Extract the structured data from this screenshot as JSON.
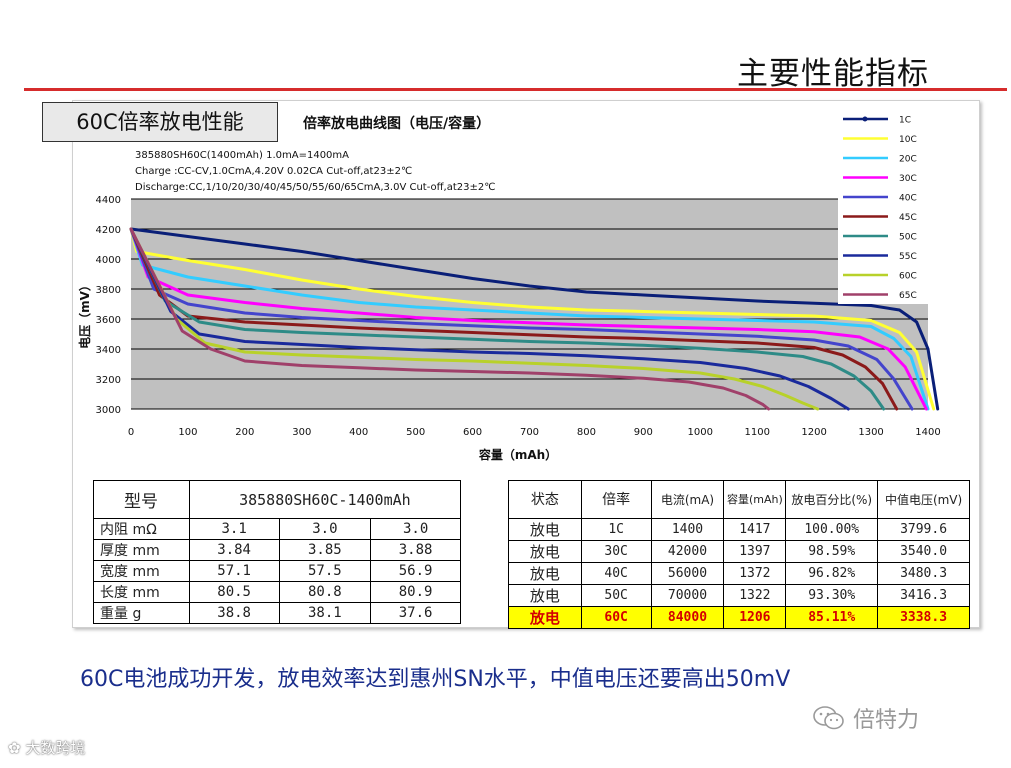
{
  "slide": {
    "title": "主要性能指标",
    "badge": "60C倍率放电性能",
    "caption": "60C电池成功开发，放电效率达到惠州SN水平，中值电压还要高出50mV",
    "wechat_name": "倍特力",
    "brand": "大数跨境",
    "accent": "#d62c2c"
  },
  "chart_data": {
    "type": "line",
    "title": "倍率放电曲线图（电压/容量）",
    "notes": [
      "385880SH60C(1400mAh) 1.0mA=1400mA",
      "Charge   :CC-CV,1.0CmA,4.20V  0.02CA Cut-off,at23±2℃",
      "Discharge:CC,1/10/20/30/40/45/50/55/60/65CmA,3.0V  Cut-off,at23±2℃"
    ],
    "xlabel": "容量（mAh）",
    "ylabel": "电压（mV）",
    "xlim": [
      0,
      1400
    ],
    "ylim": [
      3000,
      4400
    ],
    "xticks": [
      0,
      100,
      200,
      300,
      400,
      500,
      600,
      700,
      800,
      900,
      1000,
      1100,
      1200,
      1300,
      1400
    ],
    "yticks": [
      3000,
      3200,
      3400,
      3600,
      3800,
      4000,
      4200,
      4400
    ],
    "grid": true,
    "legend_position": "top-right",
    "series": [
      {
        "name": "1C",
        "color": "#0a1f78",
        "x": [
          0,
          100,
          200,
          300,
          400,
          500,
          600,
          700,
          800,
          900,
          1000,
          1100,
          1200,
          1300,
          1350,
          1380,
          1400,
          1417
        ],
        "y": [
          4200,
          4150,
          4100,
          4050,
          3990,
          3930,
          3870,
          3820,
          3780,
          3760,
          3740,
          3720,
          3705,
          3690,
          3660,
          3580,
          3400,
          3000
        ]
      },
      {
        "name": "10C",
        "color": "#ffff33",
        "x": [
          0,
          10,
          100,
          200,
          300,
          400,
          500,
          600,
          700,
          800,
          900,
          1000,
          1100,
          1200,
          1300,
          1350,
          1380,
          1410
        ],
        "y": [
          4200,
          4050,
          3990,
          3930,
          3860,
          3800,
          3750,
          3710,
          3680,
          3660,
          3650,
          3640,
          3630,
          3620,
          3590,
          3510,
          3380,
          3000
        ]
      },
      {
        "name": "20C",
        "color": "#33ccff",
        "x": [
          0,
          20,
          100,
          200,
          300,
          400,
          500,
          600,
          700,
          800,
          900,
          1000,
          1100,
          1200,
          1300,
          1340,
          1370,
          1400
        ],
        "y": [
          4200,
          3960,
          3880,
          3820,
          3760,
          3710,
          3680,
          3660,
          3640,
          3620,
          3610,
          3600,
          3590,
          3580,
          3550,
          3470,
          3350,
          3000
        ]
      },
      {
        "name": "30C",
        "color": "#ff00ff",
        "x": [
          0,
          30,
          100,
          200,
          300,
          400,
          500,
          600,
          700,
          800,
          900,
          1000,
          1100,
          1200,
          1280,
          1330,
          1360,
          1397
        ],
        "y": [
          4200,
          3880,
          3760,
          3710,
          3670,
          3640,
          3610,
          3590,
          3575,
          3560,
          3550,
          3540,
          3530,
          3515,
          3480,
          3400,
          3280,
          3000
        ]
      },
      {
        "name": "40C",
        "color": "#4444cc",
        "x": [
          0,
          40,
          100,
          200,
          300,
          400,
          500,
          600,
          700,
          800,
          900,
          1000,
          1100,
          1200,
          1260,
          1310,
          1340,
          1372
        ],
        "y": [
          4200,
          3800,
          3700,
          3640,
          3610,
          3590,
          3570,
          3555,
          3540,
          3530,
          3515,
          3500,
          3485,
          3460,
          3420,
          3330,
          3200,
          3000
        ]
      },
      {
        "name": "45C",
        "color": "#8b1a1a",
        "x": [
          0,
          50,
          100,
          200,
          300,
          400,
          500,
          600,
          700,
          800,
          900,
          1000,
          1100,
          1200,
          1250,
          1290,
          1320,
          1345
        ],
        "y": [
          4200,
          3760,
          3620,
          3580,
          3560,
          3540,
          3525,
          3510,
          3495,
          3480,
          3470,
          3455,
          3440,
          3410,
          3360,
          3280,
          3170,
          3000
        ]
      },
      {
        "name": "50C",
        "color": "#2e8b87",
        "x": [
          0,
          60,
          120,
          200,
          300,
          400,
          500,
          600,
          700,
          800,
          900,
          1000,
          1100,
          1180,
          1230,
          1270,
          1300,
          1322
        ],
        "y": [
          4200,
          3720,
          3580,
          3530,
          3510,
          3495,
          3480,
          3465,
          3450,
          3440,
          3425,
          3405,
          3380,
          3350,
          3300,
          3220,
          3120,
          3000
        ]
      },
      {
        "name": "55C",
        "color": "#1a2a9c",
        "x": [
          0,
          70,
          120,
          200,
          300,
          400,
          500,
          600,
          700,
          800,
          900,
          1000,
          1080,
          1140,
          1190,
          1230,
          1260
        ],
        "y": [
          4200,
          3650,
          3500,
          3450,
          3430,
          3410,
          3395,
          3380,
          3370,
          3355,
          3335,
          3310,
          3270,
          3220,
          3150,
          3070,
          3000
        ]
      },
      {
        "name": "60C",
        "color": "#b8d12a",
        "x": [
          0,
          80,
          130,
          200,
          300,
          400,
          500,
          600,
          700,
          800,
          900,
          1000,
          1060,
          1110,
          1150,
          1180,
          1206
        ],
        "y": [
          4200,
          3600,
          3440,
          3380,
          3360,
          3345,
          3330,
          3320,
          3305,
          3290,
          3270,
          3240,
          3200,
          3150,
          3090,
          3040,
          3000
        ]
      },
      {
        "name": "65C",
        "color": "#a0406a",
        "x": [
          0,
          90,
          140,
          200,
          300,
          400,
          500,
          600,
          700,
          800,
          900,
          980,
          1040,
          1080,
          1110,
          1120
        ],
        "y": [
          4200,
          3520,
          3400,
          3320,
          3290,
          3275,
          3260,
          3250,
          3240,
          3225,
          3205,
          3180,
          3140,
          3090,
          3030,
          3000
        ]
      }
    ]
  },
  "spec_table": {
    "model_label": "型号",
    "model_value": "385880SH60C-1400mAh",
    "rows": [
      {
        "label": "内阻 mΩ",
        "values": [
          "3.1",
          "3.0",
          "3.0"
        ]
      },
      {
        "label": "厚度 mm",
        "values": [
          "3.84",
          "3.85",
          "3.88"
        ]
      },
      {
        "label": "宽度 mm",
        "values": [
          "57.1",
          "57.5",
          "56.9"
        ]
      },
      {
        "label": "长度 mm",
        "values": [
          "80.5",
          "80.8",
          "80.9"
        ]
      },
      {
        "label": "重量 g",
        "values": [
          "38.8",
          "38.1",
          "37.6"
        ]
      }
    ]
  },
  "perf_table": {
    "headers": [
      "状态",
      "倍率",
      "电流(mA)",
      "容量(mAh)",
      "放电百分比(%)",
      "中值电压(mV)"
    ],
    "rows": [
      [
        "放电",
        "1C",
        "1400",
        "1417",
        "100.00%",
        "3799.6"
      ],
      [
        "放电",
        "30C",
        "42000",
        "1397",
        "98.59%",
        "3540.0"
      ],
      [
        "放电",
        "40C",
        "56000",
        "1372",
        "96.82%",
        "3480.3"
      ],
      [
        "放电",
        "50C",
        "70000",
        "1322",
        "93.30%",
        "3416.3"
      ],
      [
        "放电",
        "60C",
        "84000",
        "1206",
        "85.11%",
        "3338.3"
      ]
    ],
    "highlight_row": 4,
    "highlight_bg": "#ffff00",
    "highlight_text": "#d40000"
  }
}
